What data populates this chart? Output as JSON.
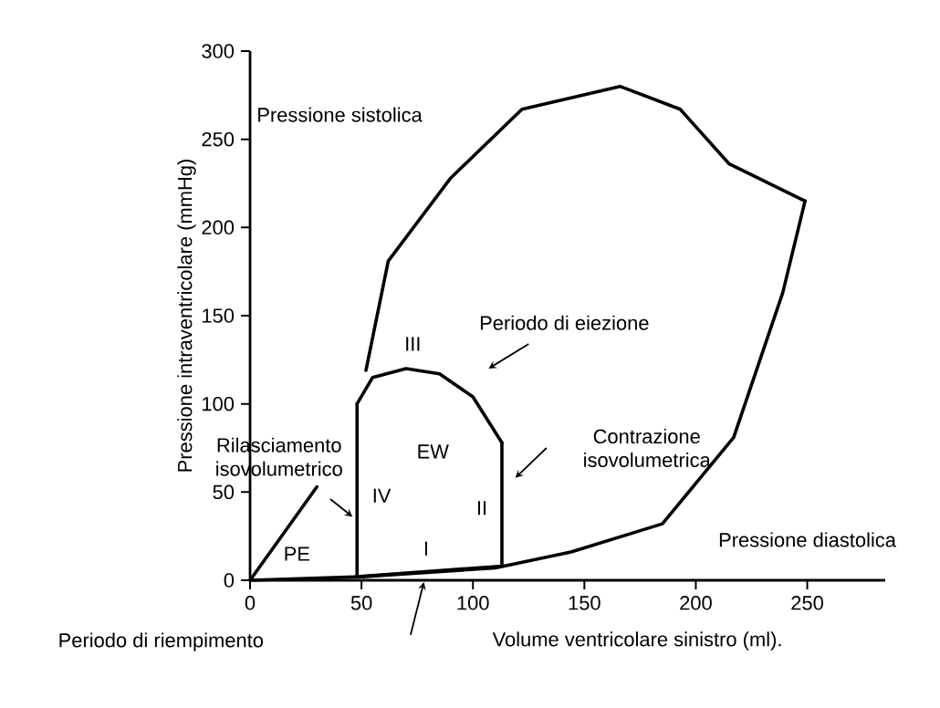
{
  "chart_data": {
    "type": "line",
    "xlabel": "Volume ventricolare sinistro (ml).",
    "ylabel": "Pressione intraventricolare (mmHg)",
    "xlim": [
      0,
      285
    ],
    "ylim": [
      0,
      300
    ],
    "xticks": [
      0,
      50,
      100,
      150,
      200,
      250
    ],
    "yticks": [
      0,
      50,
      100,
      150,
      200,
      250,
      300
    ],
    "grid": false,
    "marker": "none",
    "line_style": "solid",
    "series": [
      {
        "color": "#000000",
        "x": [
          52,
          62,
          90,
          122,
          166,
          193,
          215,
          249
        ],
        "values": [
          119,
          181,
          228,
          267,
          280,
          267,
          236,
          215
        ]
      },
      {
        "color": "#000000",
        "x": [
          0,
          50,
          110,
          144,
          185,
          217,
          239,
          249
        ],
        "values": [
          0,
          2,
          7,
          16,
          32,
          81,
          163,
          215
        ]
      },
      {
        "color": "#000000",
        "x": [
          0,
          30
        ],
        "values": [
          0,
          53
        ]
      },
      {
        "color": "#000000",
        "x": [
          48,
          80,
          113
        ],
        "values": [
          2,
          5,
          8
        ]
      },
      {
        "color": "#000000",
        "x": [
          113,
          113
        ],
        "values": [
          8,
          78
        ]
      },
      {
        "color": "#000000",
        "x": [
          48,
          55,
          70,
          85,
          100,
          113
        ],
        "values": [
          100,
          115,
          120,
          117,
          104,
          78
        ]
      },
      {
        "color": "#000000",
        "x": [
          48,
          48
        ],
        "values": [
          2,
          100
        ]
      }
    ],
    "annotations": [
      "Pressione sistolica",
      "Periodo di eiezione",
      "Contrazione isovolumetrica",
      "Rilasciamento isovolumetrico",
      "Pressione diastolica",
      "Periodo di riempimento",
      "III",
      "EW",
      "IV",
      "II",
      "I",
      "PE"
    ]
  }
}
